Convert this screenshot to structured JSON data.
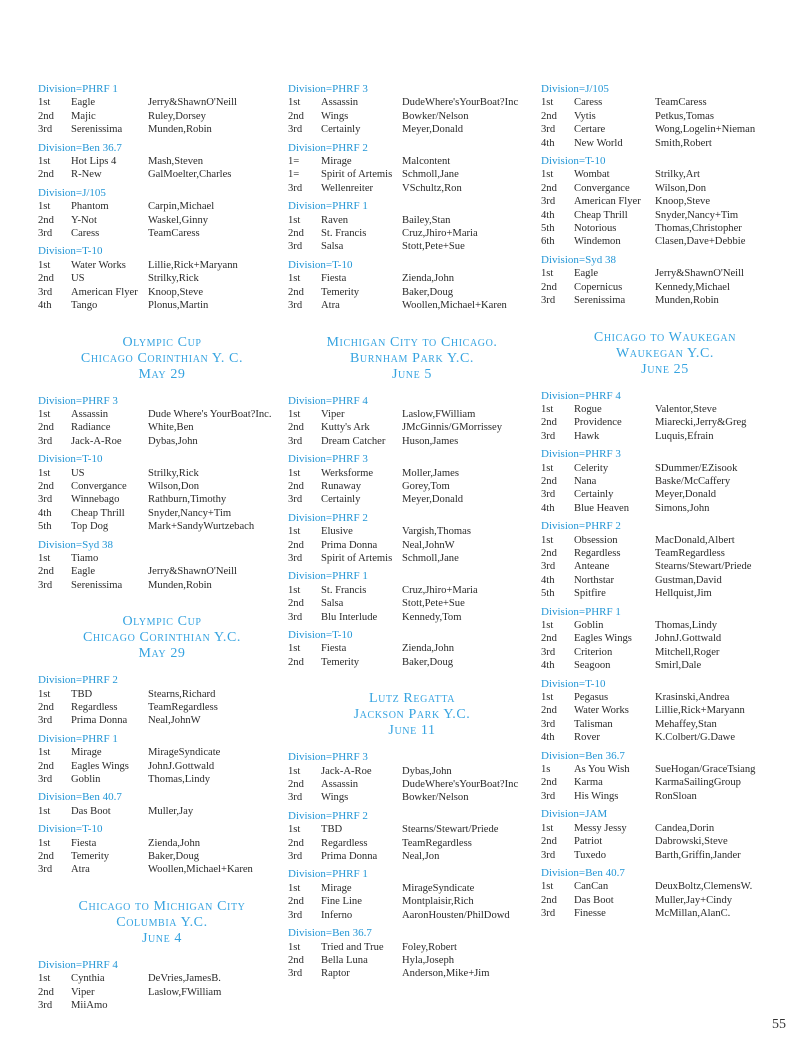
{
  "columns": [
    {
      "blocks": [
        {
          "type": "division",
          "name": "Division=PHRF 1",
          "rows": [
            [
              "1st",
              "Eagle",
              "Jerry&ShawnO'Neill"
            ],
            [
              "2nd",
              "Majic",
              "Ruley,Dorsey"
            ],
            [
              "3rd",
              "Serenissima",
              "Munden,Robin"
            ]
          ]
        },
        {
          "type": "division",
          "name": "Division=Ben 36.7",
          "rows": [
            [
              "1st",
              "Hot Lips 4",
              "Mash,Steven"
            ],
            [
              "2nd",
              "R-New",
              "GalMoelter,Charles"
            ]
          ]
        },
        {
          "type": "division",
          "name": "Division=J/105",
          "rows": [
            [
              "1st",
              "Phantom",
              "Carpin,Michael"
            ],
            [
              "2nd",
              "Y-Not",
              "Waskel,Ginny"
            ],
            [
              "3rd",
              "Caress",
              "TeamCaress"
            ]
          ]
        },
        {
          "type": "division",
          "name": "Division=T-10",
          "rows": [
            [
              "1st",
              "Water Works",
              "Lillie,Rick+Maryann"
            ],
            [
              "2nd",
              "US",
              "Strilky,Rick"
            ],
            [
              "3rd",
              "American Flyer",
              "Knoop,Steve"
            ],
            [
              "4th",
              "Tango",
              "Plonus,Martin"
            ]
          ]
        },
        {
          "type": "event",
          "lines": [
            "Olympic Cup",
            "Chicago Corinthian Y. C.",
            "May 29"
          ]
        },
        {
          "type": "division",
          "name": "Division=PHRF 3",
          "rows": [
            [
              "1st",
              "Assassin",
              "Dude Where's YourBoat?Inc."
            ],
            [
              "2nd",
              "Radiance",
              "White,Ben"
            ],
            [
              "3rd",
              "Jack-A-Roe",
              "Dybas,John"
            ]
          ]
        },
        {
          "type": "division",
          "name": "Division=T-10",
          "rows": [
            [
              "1st",
              "US",
              "Strilky,Rick"
            ],
            [
              "2nd",
              "Convergance",
              "Wilson,Don"
            ],
            [
              "3rd",
              "Winnebago",
              "Rathburn,Timothy"
            ],
            [
              "4th",
              "Cheap Thrill",
              "Snyder,Nancy+Tim"
            ],
            [
              "5th",
              "Top Dog",
              "Mark+SandyWurtzebach"
            ]
          ]
        },
        {
          "type": "division",
          "name": "Division=Syd 38",
          "rows": [
            [
              "1st",
              "Tiamo",
              ""
            ],
            [
              "2nd",
              "Eagle",
              "Jerry&ShawnO'Neill"
            ],
            [
              "3rd",
              "Serenissima",
              "Munden,Robin"
            ]
          ]
        },
        {
          "type": "event",
          "lines": [
            "Olympic Cup",
            "Chicago Corinthian Y.C.",
            "May 29"
          ]
        },
        {
          "type": "division",
          "name": "Division=PHRF 2",
          "rows": [
            [
              "1st",
              "TBD",
              "Stearns,Richard"
            ],
            [
              "2nd",
              "Regardless",
              "TeamRegardless"
            ],
            [
              "3rd",
              "Prima Donna",
              "Neal,JohnW"
            ]
          ]
        },
        {
          "type": "division",
          "name": "Division=PHRF 1",
          "rows": [
            [
              "1st",
              "Mirage",
              "MirageSyndicate"
            ],
            [
              "2nd",
              "Eagles Wings",
              "JohnJ.Gottwald"
            ],
            [
              "3rd",
              "Goblin",
              "Thomas,Lindy"
            ]
          ]
        },
        {
          "type": "division",
          "name": "Division=Ben 40.7",
          "rows": [
            [
              "1st",
              "Das Boot",
              "Muller,Jay"
            ]
          ]
        },
        {
          "type": "division",
          "name": "Division=T-10",
          "rows": [
            [
              "1st",
              "Fiesta",
              "Zienda,John"
            ],
            [
              "2nd",
              "Temerity",
              "Baker,Doug"
            ],
            [
              "3rd",
              "Atra",
              "Woollen,Michael+Karen"
            ]
          ]
        },
        {
          "type": "event",
          "lines": [
            "Chicago to Michigan City",
            "Columbia Y.C.",
            "June 4"
          ]
        },
        {
          "type": "division",
          "name": "Division=PHRF 4",
          "rows": [
            [
              "1st",
              "Cynthia",
              "DeVries,JamesB."
            ],
            [
              "2nd",
              "Viper",
              "Laslow,FWilliam"
            ],
            [
              "3rd",
              "MiiAmo",
              ""
            ]
          ]
        }
      ]
    },
    {
      "blocks": [
        {
          "type": "division",
          "name": "Division=PHRF 3",
          "rows": [
            [
              "1st",
              "Assassin",
              "DudeWhere'sYourBoat?Inc"
            ],
            [
              "2nd",
              "Wings",
              "Bowker/Nelson"
            ],
            [
              "3rd",
              "Certainly",
              "Meyer,Donald"
            ]
          ]
        },
        {
          "type": "division",
          "name": "Division=PHRF 2",
          "rows": [
            [
              "1=",
              "Mirage",
              "Malcontent"
            ],
            [
              "1=",
              "Spirit of Artemis",
              "Schmoll,Jane"
            ],
            [
              "3rd",
              "Wellenreiter",
              "VSchultz,Ron"
            ]
          ]
        },
        {
          "type": "division",
          "name": "Division=PHRF 1",
          "rows": [
            [
              "1st",
              "Raven",
              "Bailey,Stan"
            ],
            [
              "2nd",
              "St. Francis",
              "Cruz,Jhiro+Maria"
            ],
            [
              "3rd",
              "Salsa",
              "Stott,Pete+Sue"
            ]
          ]
        },
        {
          "type": "division",
          "name": "Division=T-10",
          "rows": [
            [
              "1st",
              "Fiesta",
              "Zienda,John"
            ],
            [
              "2nd",
              "Temerity",
              "Baker,Doug"
            ],
            [
              "3rd",
              "Atra",
              "Woollen,Michael+Karen"
            ]
          ]
        },
        {
          "type": "event",
          "lines": [
            "Michigan City to Chicago.",
            "Burnham Park Y.C.",
            "June 5"
          ]
        },
        {
          "type": "division",
          "name": "Division=PHRF 4",
          "rows": [
            [
              "1st",
              "Viper",
              "Laslow,FWilliam"
            ],
            [
              "2nd",
              "Kutty's Ark",
              "JMcGinnis/GMorrissey"
            ],
            [
              "3rd",
              "Dream Catcher",
              "Huson,James"
            ]
          ]
        },
        {
          "type": "division",
          "name": "Division=PHRF 3",
          "rows": [
            [
              "1st",
              "Werksforme",
              "Moller,James"
            ],
            [
              "2nd",
              "Runaway",
              "Gorey,Tom"
            ],
            [
              "3rd",
              "Certainly",
              "Meyer,Donald"
            ]
          ]
        },
        {
          "type": "division",
          "name": "Division=PHRF 2",
          "rows": [
            [
              "1st",
              "Elusive",
              "Vargish,Thomas"
            ],
            [
              "2nd",
              "Prima Donna",
              "Neal,JohnW"
            ],
            [
              "3rd",
              "Spirit of Artemis",
              "Schmoll,Jane"
            ]
          ]
        },
        {
          "type": "division",
          "name": "Division=PHRF 1",
          "rows": [
            [
              "1st",
              "St. Francis",
              "Cruz,Jhiro+Maria"
            ],
            [
              "2nd",
              "Salsa",
              "Stott,Pete+Sue"
            ],
            [
              "3rd",
              "Blu Interlude",
              "Kennedy,Tom"
            ]
          ]
        },
        {
          "type": "division",
          "name": "Division=T-10",
          "rows": [
            [
              "1st",
              "Fiesta",
              "Zienda,John"
            ],
            [
              "2nd",
              "Temerity",
              "Baker,Doug"
            ]
          ]
        },
        {
          "type": "event",
          "lines": [
            "Lutz Regatta",
            "Jackson Park Y.C.",
            "June 11"
          ]
        },
        {
          "type": "division",
          "name": "Division=PHRF 3",
          "rows": [
            [
              "1st",
              "Jack-A-Roe",
              "Dybas,John"
            ],
            [
              "2nd",
              "Assassin",
              "DudeWhere'sYourBoat?Inc"
            ],
            [
              "3rd",
              "Wings",
              "Bowker/Nelson"
            ]
          ]
        },
        {
          "type": "division",
          "name": "Division=PHRF 2",
          "rows": [
            [
              "1st",
              "TBD",
              "Stearns/Stewart/Priede"
            ],
            [
              "2nd",
              "Regardless",
              "TeamRegardless"
            ],
            [
              "3rd",
              "Prima Donna",
              "Neal,Jon"
            ]
          ]
        },
        {
          "type": "division",
          "name": "Division=PHRF 1",
          "rows": [
            [
              "1st",
              "Mirage",
              "MirageSyndicate"
            ],
            [
              "2nd",
              "Fine Line",
              "Montplaisir,Rich"
            ],
            [
              "3rd",
              "Inferno",
              "AaronHousten/PhilDowd"
            ]
          ]
        },
        {
          "type": "division",
          "name": "Division=Ben 36.7",
          "rows": [
            [
              "1st",
              "Tried and True",
              "Foley,Robert"
            ],
            [
              "2nd",
              "Bella Luna",
              "Hyla,Joseph"
            ],
            [
              "3rd",
              "Raptor",
              "Anderson,Mike+Jim"
            ]
          ]
        }
      ]
    },
    {
      "blocks": [
        {
          "type": "division",
          "name": "Division=J/105",
          "rows": [
            [
              "1st",
              "Caress",
              "TeamCaress"
            ],
            [
              "2nd",
              "Vytis",
              "Petkus,Tomas"
            ],
            [
              "3rd",
              "Certare",
              "Wong,Logelin+Nieman"
            ],
            [
              "4th",
              "New World",
              "Smith,Robert"
            ]
          ]
        },
        {
          "type": "division",
          "name": "Division=T-10",
          "rows": [
            [
              "1st",
              "Wombat",
              "Strilky,Art"
            ],
            [
              "2nd",
              "Convergance",
              "Wilson,Don"
            ],
            [
              "3rd",
              "American Flyer",
              "Knoop,Steve"
            ],
            [
              "4th",
              "Cheap Thrill",
              "Snyder,Nancy+Tim"
            ],
            [
              "5th",
              "Notorious",
              "Thomas,Christopher"
            ],
            [
              "6th",
              "Windemon",
              "Clasen,Dave+Debbie"
            ]
          ]
        },
        {
          "type": "division",
          "name": "Division=Syd 38",
          "rows": [
            [
              "1st",
              "Eagle",
              "Jerry&ShawnO'Neill"
            ],
            [
              "2nd",
              "Copernicus",
              "Kennedy,Michael"
            ],
            [
              "3rd",
              "Serenissima",
              "Munden,Robin"
            ]
          ]
        },
        {
          "type": "event",
          "lines": [
            "Chicago to Waukegan",
            "Waukegan Y.C.",
            "June 25"
          ]
        },
        {
          "type": "division",
          "name": "Division=PHRF 4",
          "rows": [
            [
              "1st",
              "Rogue",
              "Valentor,Steve"
            ],
            [
              "2nd",
              "Providence",
              "Miarecki,Jerry&Greg"
            ],
            [
              "3rd",
              "Hawk",
              "Luquis,Efrain"
            ]
          ]
        },
        {
          "type": "division",
          "name": "Division=PHRF 3",
          "rows": [
            [
              "1st",
              "Celerity",
              "SDummer/EZisook"
            ],
            [
              "2nd",
              "Nana",
              "Baske/McCaffery"
            ],
            [
              "3rd",
              "Certainly",
              "Meyer,Donald"
            ],
            [
              "4th",
              "Blue Heaven",
              "Simons,John"
            ]
          ]
        },
        {
          "type": "division",
          "name": "Division=PHRF 2",
          "rows": [
            [
              "1st",
              "Obsession",
              "MacDonald,Albert"
            ],
            [
              "2nd",
              "Regardless",
              "TeamRegardless"
            ],
            [
              "3rd",
              "Anteane",
              "Stearns/Stewart/Priede"
            ],
            [
              "4th",
              "Northstar",
              "Gustman,David"
            ],
            [
              "5th",
              "Spitfire",
              "Hellquist,Jim"
            ]
          ]
        },
        {
          "type": "division",
          "name": "Division=PHRF 1",
          "rows": [
            [
              "1st",
              "Goblin",
              "Thomas,Lindy"
            ],
            [
              "2nd",
              "Eagles Wings",
              "JohnJ.Gottwald"
            ],
            [
              "3rd",
              "Criterion",
              "Mitchell,Roger"
            ],
            [
              "4th",
              "Seagoon",
              "Smirl,Dale"
            ]
          ]
        },
        {
          "type": "division",
          "name": "Division=T-10",
          "rows": [
            [
              "1st",
              "Pegasus",
              "Krasinski,Andrea"
            ],
            [
              "2nd",
              "Water Works",
              "Lillie,Rick+Maryann"
            ],
            [
              "3rd",
              "Talisman",
              "Mehaffey,Stan"
            ],
            [
              "4th",
              "Rover",
              "K.Colbert/G.Dawe"
            ]
          ]
        },
        {
          "type": "division",
          "name": "Division=Ben 36.7",
          "rows": [
            [
              "1s",
              "As You Wish",
              "SueHogan/GraceTsiang"
            ],
            [
              "2nd",
              "Karma",
              "KarmaSailingGroup"
            ],
            [
              "3rd",
              "His Wings",
              "RonSloan"
            ]
          ]
        },
        {
          "type": "division",
          "name": "Division=JAM",
          "rows": [
            [
              "1st",
              "Messy Jessy",
              "Candea,Dorin"
            ],
            [
              "2nd",
              "Patriot",
              "Dabrowski,Steve"
            ],
            [
              "3rd",
              "Tuxedo",
              "Barth,Griffin,Jander"
            ]
          ]
        },
        {
          "type": "division",
          "name": "Division=Ben 40.7",
          "rows": [
            [
              "1st",
              "CanCan",
              "DeuxBoltz,ClemensW."
            ],
            [
              "2nd",
              "Das Boot",
              "Muller,Jay+Cindy"
            ],
            [
              "3rd",
              "Finesse",
              "McMillan,AlanC."
            ]
          ]
        }
      ]
    }
  ],
  "page_number": "55",
  "colors": {
    "division_heading": "#2396d6",
    "event_heading": "#35a3e0",
    "body_text": "#2a2a2a"
  }
}
